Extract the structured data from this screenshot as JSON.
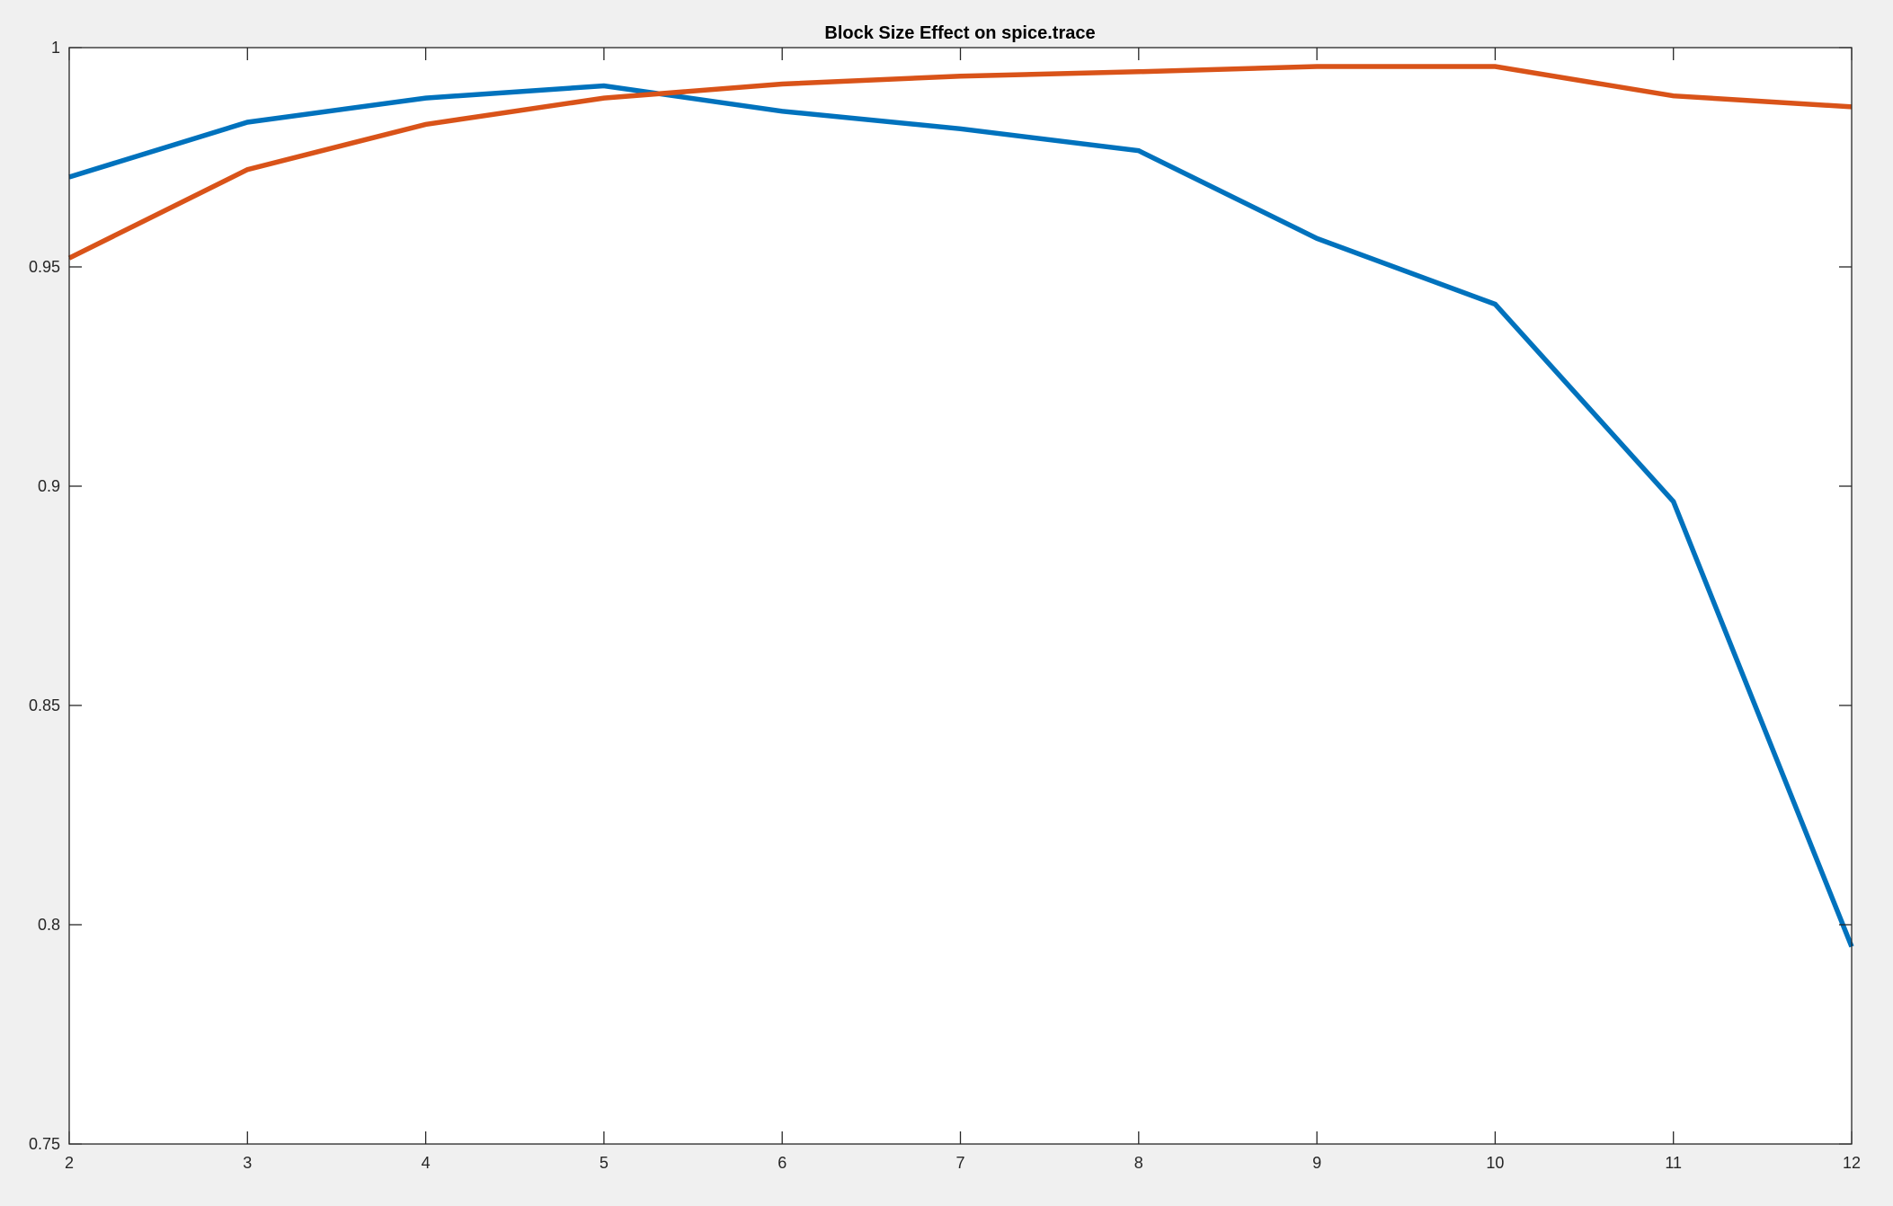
{
  "chart_data": {
    "type": "line",
    "title": "Block Size Effect on spice.trace",
    "xlabel": "",
    "ylabel": "",
    "xlim": [
      2,
      12
    ],
    "ylim": [
      0.75,
      1
    ],
    "x": [
      2,
      3,
      4,
      5,
      6,
      7,
      8,
      9,
      10,
      11,
      12
    ],
    "xticks": [
      "2",
      "3",
      "4",
      "5",
      "6",
      "7",
      "8",
      "9",
      "10",
      "11",
      "12"
    ],
    "yticks": [
      "0.75",
      "0.8",
      "0.85",
      "0.9",
      "0.95",
      "1"
    ],
    "grid": false,
    "series": [
      {
        "color": "#0072BD",
        "values": [
          0.9705,
          0.983,
          0.9885,
          0.9913,
          0.9855,
          0.9815,
          0.9765,
          0.9565,
          0.9415,
          0.8965,
          0.795
        ]
      },
      {
        "color": "#D95319",
        "values": [
          0.952,
          0.9722,
          0.9825,
          0.9885,
          0.9917,
          0.9935,
          0.9945,
          0.9957,
          0.9957,
          0.989,
          0.9865
        ]
      }
    ]
  }
}
